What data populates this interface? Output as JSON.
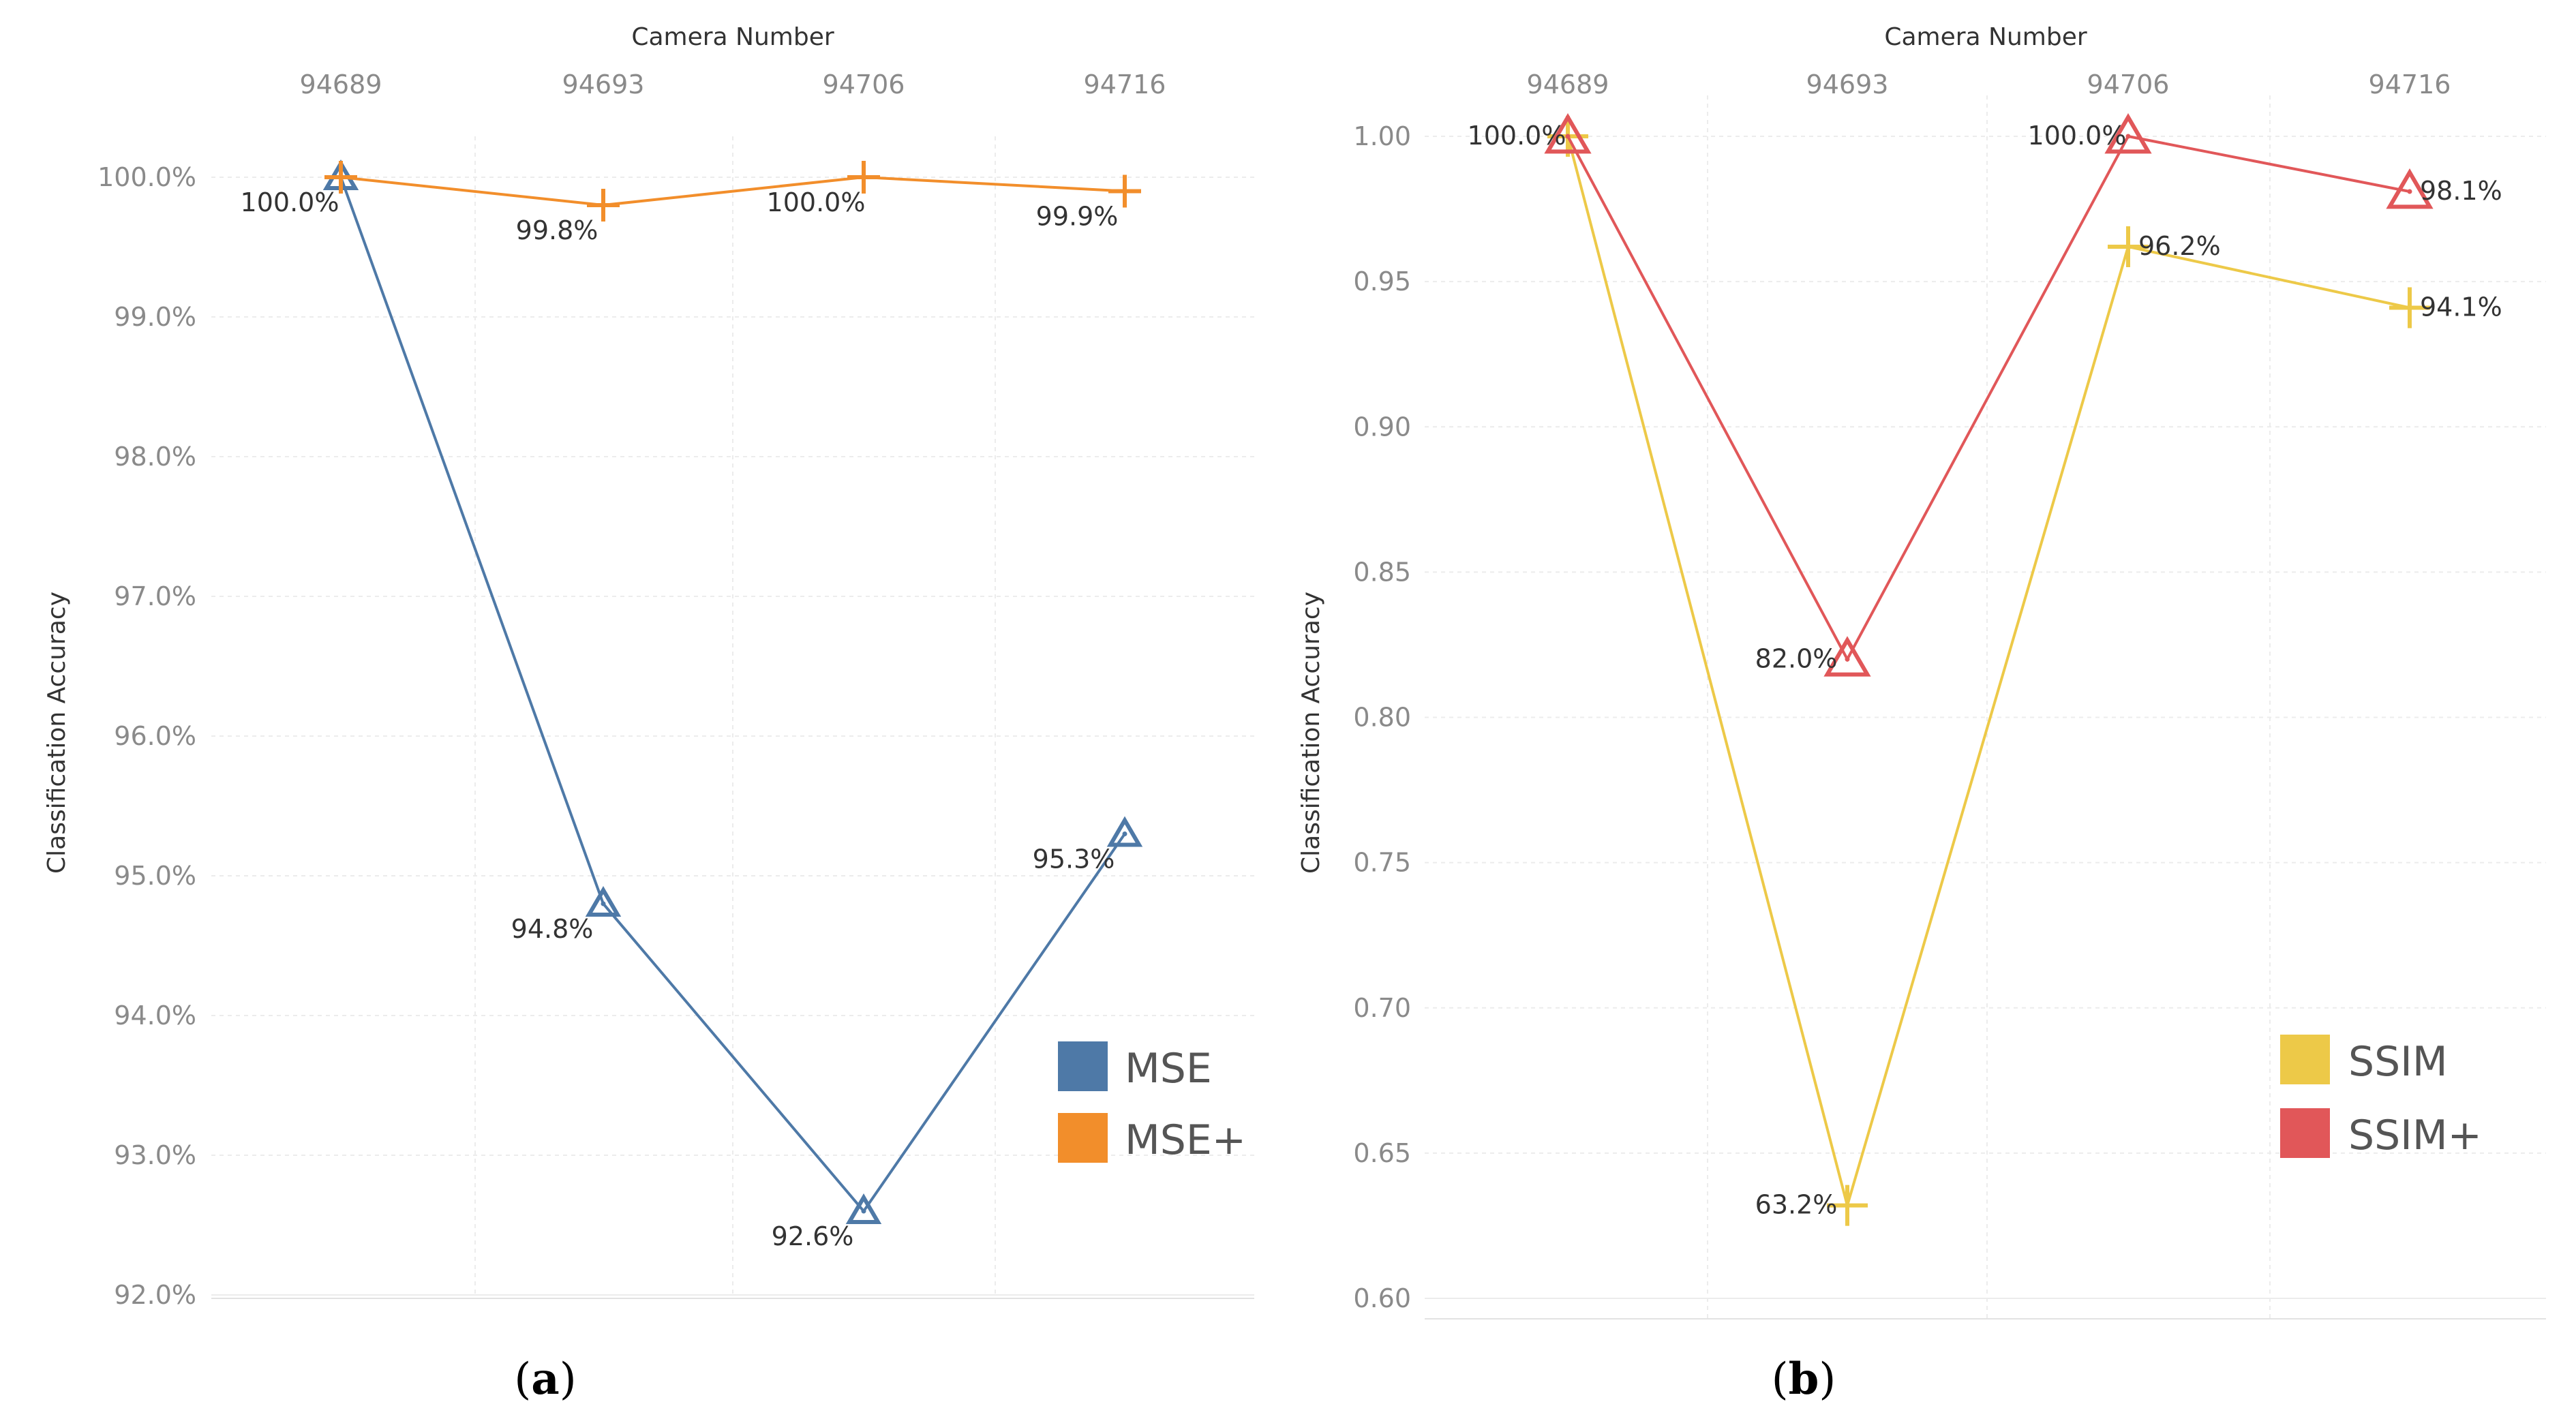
{
  "chart_data": [
    {
      "panel": "(a)",
      "caption_letter": "a",
      "type": "line",
      "x_axis_title": "Camera Number",
      "ylabel": "Classification Accuracy",
      "categories": [
        "94689",
        "94693",
        "94706",
        "94716"
      ],
      "ylim": [
        92.0,
        100.0
      ],
      "yticks": [
        "100.0%",
        "99.0%",
        "98.0%",
        "97.0%",
        "96.0%",
        "95.0%",
        "94.0%",
        "93.0%",
        "92.0%"
      ],
      "ytick_values": [
        100,
        99,
        98,
        97,
        96,
        95,
        94,
        93,
        92
      ],
      "grid": true,
      "legend_position": "bottom-right",
      "series": [
        {
          "name": "MSE",
          "color": "#4e79a7",
          "marker": "triangle",
          "values": [
            100.0,
            94.8,
            92.6,
            95.3
          ],
          "labels": [
            "100.0%",
            "94.8%",
            "92.6%",
            "95.3%"
          ]
        },
        {
          "name": "MSE+",
          "color": "#f28e2b",
          "marker": "plus",
          "values": [
            100.0,
            99.8,
            100.0,
            99.9
          ],
          "labels": [
            "",
            "99.8%",
            "100.0%",
            "99.9%"
          ]
        }
      ]
    },
    {
      "panel": "(b)",
      "caption_letter": "b",
      "type": "line",
      "x_axis_title": "Camera Number",
      "ylabel": "Classification Accuracy",
      "categories": [
        "94689",
        "94693",
        "94706",
        "94716"
      ],
      "ylim": [
        0.6,
        1.0
      ],
      "yticks": [
        "1.00",
        "0.95",
        "0.90",
        "0.85",
        "0.80",
        "0.75",
        "0.70",
        "0.65",
        "0.60"
      ],
      "ytick_values": [
        1.0,
        0.95,
        0.9,
        0.85,
        0.8,
        0.75,
        0.7,
        0.65,
        0.6
      ],
      "grid": true,
      "legend_position": "bottom-right",
      "series": [
        {
          "name": "SSIM",
          "color": "#edc948",
          "marker": "plus",
          "values": [
            1.0,
            0.632,
            0.962,
            0.941
          ],
          "labels": [
            "",
            "63.2%",
            "96.2%",
            "94.1%"
          ]
        },
        {
          "name": "SSIM+",
          "color": "#e15759",
          "marker": "triangle",
          "values": [
            1.0,
            0.82,
            1.0,
            0.981
          ],
          "labels": [
            "100.0%",
            "82.0%",
            "100.0%",
            "98.1%"
          ]
        }
      ]
    }
  ]
}
